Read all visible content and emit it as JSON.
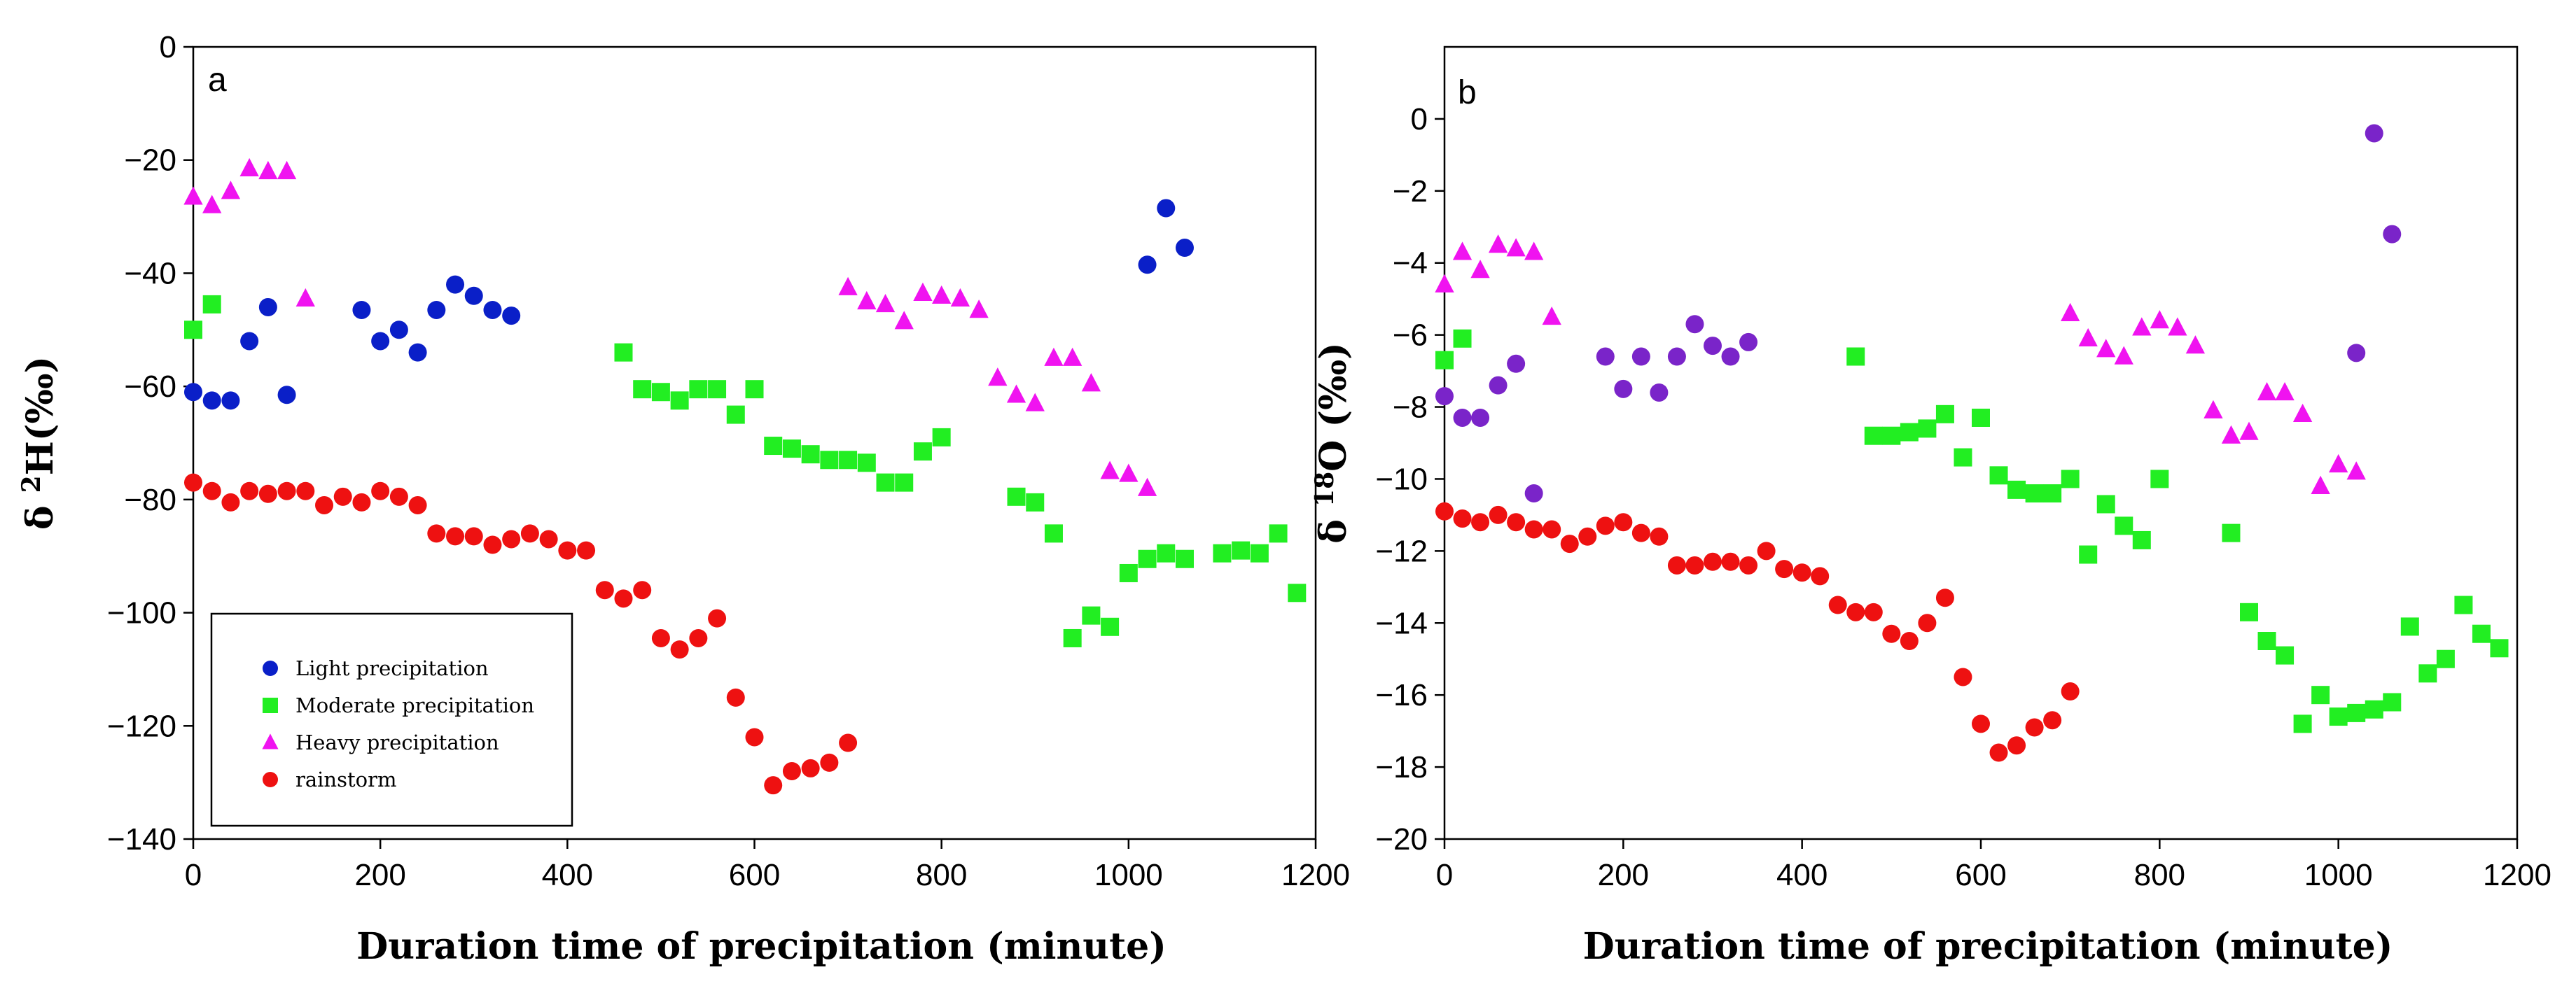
{
  "chart_data": [
    {
      "type": "scatter",
      "panel_label": "a",
      "title": "",
      "xlabel": "Duration time of precipitation (minute)",
      "ylabel_prefix": "δ ",
      "ylabel_sup": "2",
      "ylabel_main": "H(‰)",
      "xlim": [
        0,
        1200
      ],
      "ylim": [
        -140,
        0
      ],
      "xticks": [
        0,
        200,
        400,
        600,
        800,
        1000,
        1200
      ],
      "yticks": [
        0,
        -20,
        -40,
        -60,
        -80,
        -100,
        -120,
        -140
      ],
      "legend": {
        "position": "bottom-left",
        "entries": [
          {
            "label": "Light precipitation",
            "series": "light"
          },
          {
            "label": "Moderate precipitation",
            "series": "moderate"
          },
          {
            "label": "Heavy precipitation",
            "series": "heavy"
          },
          {
            "label": "rainstorm",
            "series": "rainstorm"
          }
        ]
      },
      "series": [
        {
          "name": "Light precipitation",
          "key": "light",
          "marker": "circle",
          "color": "#0a1fc8",
          "x": [
            0,
            20,
            40,
            60,
            80,
            100,
            180,
            200,
            220,
            240,
            260,
            280,
            300,
            320,
            340,
            1020,
            1040,
            1060
          ],
          "y": [
            -61,
            -62.5,
            -62.5,
            -52,
            -46,
            -61.5,
            -46.5,
            -52,
            -50,
            -54,
            -46.5,
            -42,
            -44,
            -46.5,
            -47.5,
            -38.5,
            -28.5,
            -35.5
          ]
        },
        {
          "name": "Moderate precipitation",
          "key": "moderate",
          "marker": "square",
          "color": "#22ee22",
          "x": [
            0,
            20,
            460,
            480,
            500,
            520,
            540,
            560,
            580,
            600,
            620,
            640,
            660,
            680,
            700,
            720,
            740,
            760,
            780,
            800,
            880,
            900,
            920,
            940,
            960,
            980,
            1000,
            1020,
            1040,
            1060,
            1100,
            1120,
            1140,
            1160,
            1180
          ],
          "y": [
            -50,
            -45.5,
            -54,
            -60.5,
            -61,
            -62.5,
            -60.5,
            -60.5,
            -65,
            -60.5,
            -70.5,
            -71,
            -72,
            -73,
            -73,
            -73.5,
            -77,
            -77,
            -71.5,
            -69,
            -79.5,
            -80.5,
            -86,
            -104.5,
            -100.5,
            -102.5,
            -93,
            -90.5,
            -89.5,
            -90.5,
            -89.5,
            -89,
            -89.5,
            -86,
            -96.5
          ]
        },
        {
          "name": "Heavy precipitation",
          "key": "heavy",
          "marker": "triangle",
          "color": "#f013f0",
          "x": [
            0,
            20,
            40,
            60,
            80,
            100,
            120,
            700,
            720,
            740,
            760,
            780,
            800,
            820,
            840,
            860,
            880,
            900,
            920,
            940,
            960,
            980,
            1000,
            1020
          ],
          "y": [
            -26.5,
            -28,
            -25.5,
            -21.5,
            -22,
            -22,
            -44.5,
            -42.5,
            -45,
            -45.5,
            -48.5,
            -43.5,
            -44,
            -44.5,
            -46.5,
            -58.5,
            -61.5,
            -63,
            -55,
            -55,
            -59.5,
            -75,
            -75.5,
            -78
          ]
        },
        {
          "name": "rainstorm",
          "key": "rainstorm",
          "marker": "circle",
          "color": "#ee1111",
          "x": [
            0,
            20,
            40,
            60,
            80,
            100,
            120,
            140,
            160,
            180,
            200,
            220,
            240,
            260,
            280,
            300,
            320,
            340,
            360,
            380,
            400,
            420,
            440,
            460,
            480,
            500,
            520,
            540,
            560,
            580,
            600,
            620,
            640,
            660,
            680,
            700
          ],
          "y": [
            -77,
            -78.5,
            -80.5,
            -78.5,
            -79,
            -78.5,
            -78.5,
            -81,
            -79.5,
            -80.5,
            -78.5,
            -79.5,
            -81,
            -86,
            -86.5,
            -86.5,
            -88,
            -87,
            -86,
            -87,
            -89,
            -89,
            -96,
            -97.5,
            -96,
            -104.5,
            -106.5,
            -104.5,
            -101,
            -115,
            -122,
            -130.5,
            -128,
            -127.5,
            -126.5,
            -123
          ]
        }
      ]
    },
    {
      "type": "scatter",
      "panel_label": "b",
      "title": "",
      "xlabel": "Duration time of precipitation (minute)",
      "ylabel_prefix": "δ ",
      "ylabel_sup": "18",
      "ylabel_main": "O (‰)",
      "xlim": [
        0,
        1200
      ],
      "ylim": [
        -20,
        2
      ],
      "xticks": [
        0,
        200,
        400,
        600,
        800,
        1000,
        1200
      ],
      "yticks": [
        0,
        -2,
        -4,
        -6,
        -8,
        -10,
        -12,
        -14,
        -16,
        -18,
        -20
      ],
      "series": [
        {
          "name": "Light precipitation",
          "key": "light",
          "marker": "circle",
          "color": "#7a24c9",
          "x": [
            0,
            20,
            40,
            60,
            80,
            100,
            180,
            200,
            220,
            240,
            260,
            280,
            300,
            320,
            340,
            1020,
            1040,
            1060
          ],
          "y": [
            -7.7,
            -8.3,
            -8.3,
            -7.4,
            -6.8,
            -10.4,
            -6.6,
            -7.5,
            -6.6,
            -7.6,
            -6.6,
            -5.7,
            -6.3,
            -6.6,
            -6.2,
            -6.5,
            -0.4,
            -3.2
          ]
        },
        {
          "name": "Moderate precipitation",
          "key": "moderate",
          "marker": "square",
          "color": "#22ee22",
          "x": [
            0,
            20,
            460,
            480,
            500,
            520,
            540,
            560,
            580,
            600,
            620,
            640,
            660,
            680,
            700,
            720,
            740,
            760,
            780,
            800,
            880,
            900,
            920,
            940,
            960,
            980,
            1000,
            1020,
            1040,
            1060,
            1080,
            1100,
            1120,
            1140,
            1160,
            1180
          ],
          "y": [
            -6.7,
            -6.1,
            -6.6,
            -8.8,
            -8.8,
            -8.7,
            -8.6,
            -8.2,
            -9.4,
            -8.3,
            -9.9,
            -10.3,
            -10.4,
            -10.4,
            -10,
            -12.1,
            -10.7,
            -11.3,
            -11.7,
            -10,
            -11.5,
            -13.7,
            -14.5,
            -14.9,
            -16.8,
            -16,
            -16.6,
            -16.5,
            -16.4,
            -16.2,
            -14.1,
            -15.4,
            -15,
            -13.5,
            -14.3,
            -14.7
          ]
        },
        {
          "name": "Heavy precipitation",
          "key": "heavy",
          "marker": "triangle",
          "color": "#f013f0",
          "x": [
            0,
            20,
            40,
            60,
            80,
            100,
            120,
            700,
            720,
            740,
            760,
            780,
            800,
            820,
            840,
            860,
            880,
            900,
            920,
            940,
            960,
            980,
            1000,
            1020
          ],
          "y": [
            -4.6,
            -3.7,
            -4.2,
            -3.5,
            -3.6,
            -3.7,
            -5.5,
            -5.4,
            -6.1,
            -6.4,
            -6.6,
            -5.8,
            -5.6,
            -5.8,
            -6.3,
            -8.1,
            -8.8,
            -8.7,
            -7.6,
            -7.6,
            -8.2,
            -10.2,
            -9.6,
            -9.8
          ]
        },
        {
          "name": "rainstorm",
          "key": "rainstorm",
          "marker": "circle",
          "color": "#ee1111",
          "x": [
            0,
            20,
            40,
            60,
            80,
            100,
            120,
            140,
            160,
            180,
            200,
            220,
            240,
            260,
            280,
            300,
            320,
            340,
            360,
            380,
            400,
            420,
            440,
            460,
            480,
            500,
            520,
            540,
            560,
            580,
            600,
            620,
            640,
            660,
            680,
            700
          ],
          "y": [
            -10.9,
            -11.1,
            -11.2,
            -11,
            -11.2,
            -11.4,
            -11.4,
            -11.8,
            -11.6,
            -11.3,
            -11.2,
            -11.5,
            -11.6,
            -12.4,
            -12.4,
            -12.3,
            -12.3,
            -12.4,
            -12,
            -12.5,
            -12.6,
            -12.7,
            -13.5,
            -13.7,
            -13.7,
            -14.3,
            -14.5,
            -14,
            -13.3,
            -15.5,
            -16.8,
            -17.6,
            -17.4,
            -16.9,
            -16.7,
            -15.9
          ]
        }
      ]
    }
  ]
}
